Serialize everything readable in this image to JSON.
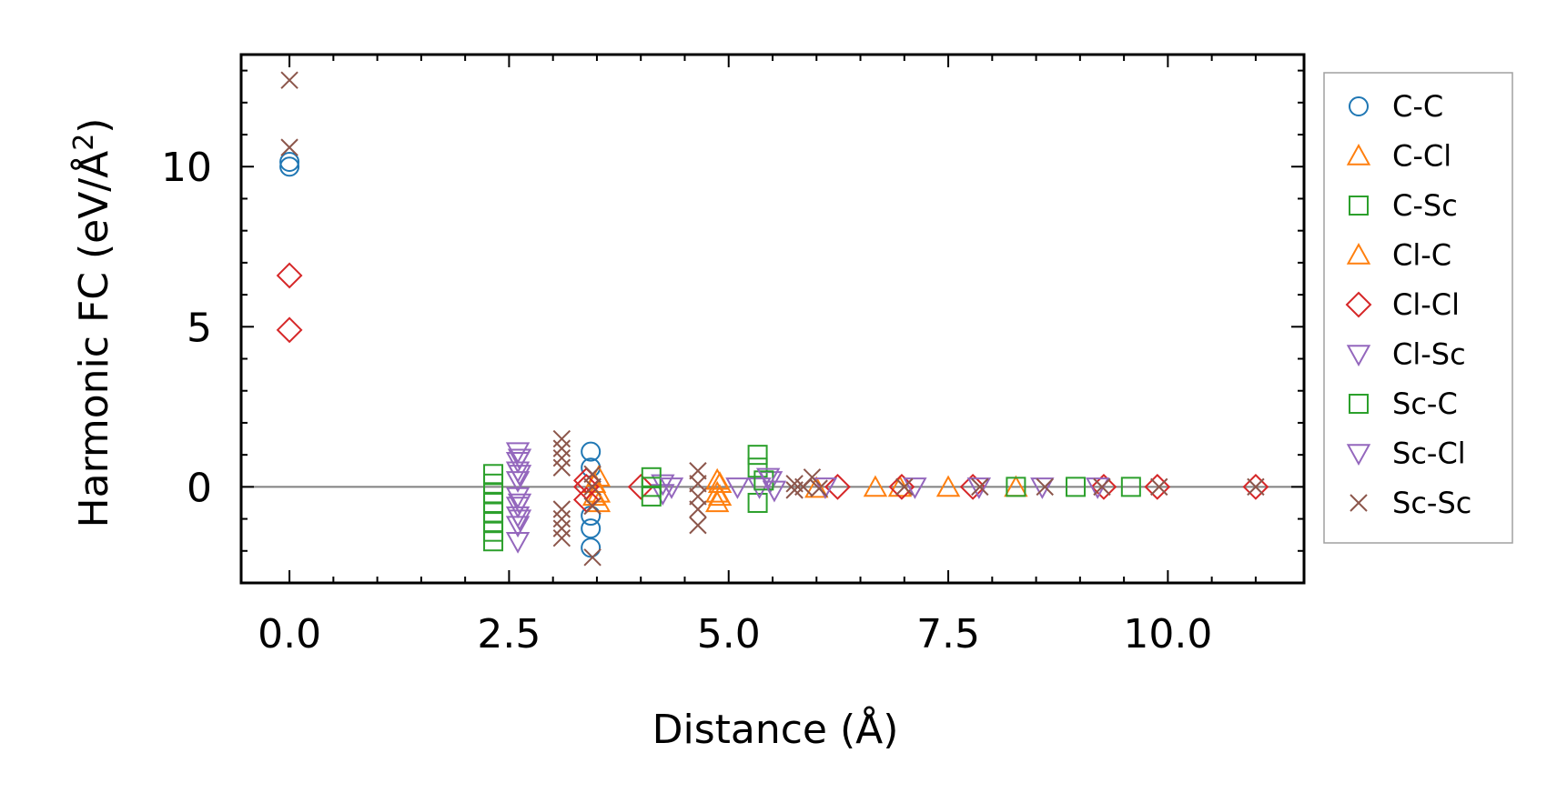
{
  "chart_data": {
    "type": "scatter",
    "title": "",
    "xlabel": "Distance (Å)",
    "ylabel_main": "Harmonic FC (eV/Å",
    "ylabel_sup": "2",
    "ylabel_close": ")",
    "xlim": [
      -0.55,
      11.55
    ],
    "ylim": [
      -3.0,
      13.5
    ],
    "xticks": [
      0.0,
      2.5,
      5.0,
      7.5,
      10.0
    ],
    "xtick_labels": [
      "0.0",
      "2.5",
      "5.0",
      "7.5",
      "10.0"
    ],
    "yticks": [
      0,
      5,
      10
    ],
    "ytick_labels": [
      "0",
      "5",
      "10"
    ],
    "zero_line": true,
    "legend_position": "outside-right",
    "series": [
      {
        "name": "C-C",
        "marker": "circle",
        "color": "#1f77b4",
        "points": [
          [
            0.0,
            10.0
          ],
          [
            0.0,
            10.15
          ],
          [
            3.43,
            1.1
          ],
          [
            3.43,
            0.6
          ],
          [
            3.43,
            -0.9
          ],
          [
            3.43,
            -1.3
          ],
          [
            3.43,
            -1.9
          ]
        ]
      },
      {
        "name": "C-Cl",
        "marker": "triangle-up",
        "color": "#ff7f0e",
        "points": [
          [
            3.52,
            0.3
          ],
          [
            3.52,
            -0.2
          ],
          [
            3.52,
            -0.5
          ],
          [
            4.87,
            0.2
          ],
          [
            4.87,
            -0.2
          ],
          [
            4.87,
            -0.5
          ],
          [
            6.67,
            -0.02
          ],
          [
            7.5,
            -0.02
          ],
          [
            8.27,
            -0.02
          ]
        ]
      },
      {
        "name": "C-Sc",
        "marker": "square",
        "color": "#2ca02c",
        "points": [
          [
            2.32,
            0.4
          ],
          [
            2.32,
            0.1
          ],
          [
            2.32,
            -0.2
          ],
          [
            2.32,
            -0.5
          ],
          [
            2.32,
            -0.8
          ],
          [
            2.32,
            -1.1
          ],
          [
            2.32,
            -1.4
          ],
          [
            2.32,
            -1.7
          ],
          [
            5.33,
            1.0
          ],
          [
            5.33,
            0.6
          ],
          [
            5.33,
            -0.5
          ],
          [
            8.27,
            0.0
          ],
          [
            8.95,
            0.0
          ],
          [
            9.58,
            0.0
          ]
        ]
      },
      {
        "name": "Cl-C",
        "marker": "triangle-up",
        "color": "#ff7f0e",
        "points": [
          [
            3.47,
            0.1
          ],
          [
            3.47,
            -0.3
          ],
          [
            4.9,
            0.1
          ],
          [
            4.9,
            -0.3
          ],
          [
            6.0,
            -0.05
          ],
          [
            6.95,
            -0.02
          ]
        ]
      },
      {
        "name": "Cl-Cl",
        "marker": "diamond",
        "color": "#d62728",
        "points": [
          [
            0.0,
            6.6
          ],
          [
            0.0,
            4.9
          ],
          [
            3.38,
            0.2
          ],
          [
            3.38,
            0.0
          ],
          [
            3.38,
            -0.4
          ],
          [
            4.0,
            0.0
          ],
          [
            6.24,
            0.0
          ],
          [
            6.97,
            0.0
          ],
          [
            7.78,
            0.0
          ],
          [
            9.27,
            0.0
          ],
          [
            9.88,
            0.0
          ],
          [
            11.0,
            0.0
          ]
        ]
      },
      {
        "name": "Cl-Sc",
        "marker": "triangle-down",
        "color": "#9467bd",
        "points": [
          [
            2.6,
            1.1
          ],
          [
            2.6,
            0.8
          ],
          [
            2.6,
            0.5
          ],
          [
            2.6,
            0.2
          ],
          [
            2.6,
            -0.3
          ],
          [
            2.6,
            -0.6
          ],
          [
            2.6,
            -0.9
          ],
          [
            2.6,
            -1.2
          ],
          [
            2.6,
            -1.7
          ],
          [
            4.25,
            0.1
          ],
          [
            4.25,
            -0.2
          ],
          [
            5.1,
            0.0
          ],
          [
            5.35,
            0.0
          ],
          [
            5.48,
            0.2
          ],
          [
            6.1,
            0.0
          ],
          [
            7.12,
            0.0
          ],
          [
            7.85,
            0.0
          ],
          [
            8.57,
            0.0
          ],
          [
            9.2,
            0.0
          ]
        ]
      },
      {
        "name": "Sc-C",
        "marker": "square",
        "color": "#2ca02c",
        "points": [
          [
            4.12,
            0.3
          ],
          [
            4.12,
            0.0
          ],
          [
            4.12,
            -0.3
          ],
          [
            5.4,
            0.2
          ]
        ]
      },
      {
        "name": "Sc-Cl",
        "marker": "triangle-down",
        "color": "#9467bd",
        "points": [
          [
            2.62,
            0.9
          ],
          [
            2.62,
            0.4
          ],
          [
            2.62,
            -0.5
          ],
          [
            2.62,
            -1.0
          ],
          [
            4.35,
            0.0
          ],
          [
            5.45,
            0.3
          ],
          [
            5.52,
            -0.1
          ]
        ]
      },
      {
        "name": "Sc-Sc",
        "marker": "x",
        "color": "#8c564b",
        "points": [
          [
            0.0,
            12.7
          ],
          [
            0.0,
            10.6
          ],
          [
            3.1,
            1.5
          ],
          [
            3.1,
            1.2
          ],
          [
            3.1,
            0.9
          ],
          [
            3.1,
            0.6
          ],
          [
            3.1,
            -0.7
          ],
          [
            3.1,
            -1.0
          ],
          [
            3.1,
            -1.3
          ],
          [
            3.1,
            -1.6
          ],
          [
            3.45,
            0.4
          ],
          [
            3.45,
            0.0
          ],
          [
            3.45,
            -0.6
          ],
          [
            3.45,
            -2.2
          ],
          [
            4.65,
            0.5
          ],
          [
            4.65,
            0.1
          ],
          [
            4.65,
            -0.3
          ],
          [
            4.65,
            -0.7
          ],
          [
            4.65,
            -1.2
          ],
          [
            5.75,
            0.1
          ],
          [
            5.75,
            -0.1
          ],
          [
            5.85,
            0.0
          ],
          [
            5.95,
            0.3
          ],
          [
            6.03,
            -0.05
          ],
          [
            7.0,
            0.0
          ],
          [
            7.86,
            0.0
          ],
          [
            8.6,
            0.0
          ],
          [
            9.25,
            0.0
          ],
          [
            9.9,
            0.0
          ],
          [
            11.0,
            0.0
          ]
        ]
      }
    ]
  }
}
